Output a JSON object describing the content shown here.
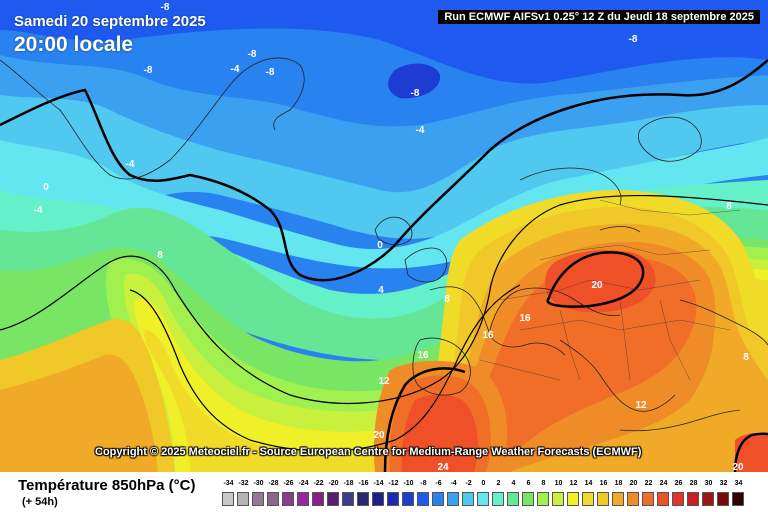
{
  "header": {
    "date_title": "Samedi 20 septembre 2025",
    "time_title": "20:00 locale",
    "run_info": "Run ECMWF AIFSv1 0.25° 12 Z du Jeudi 18 septembre 2025"
  },
  "copyright": "Copyright © 2025 Meteociel.fr - Source European Centre for Medium-Range Weather Forecasts (ECMWF)",
  "footer": {
    "variable_title": "Température 850hPa (°C)",
    "lead_time": "(+ 54h)"
  },
  "legend": {
    "labels": [
      "-34",
      "-32",
      "-30",
      "-28",
      "-26",
      "-24",
      "-22",
      "-20",
      "-18",
      "-16",
      "-14",
      "-12",
      "-10",
      "-8",
      "-6",
      "-4",
      "-2",
      "0",
      "2",
      "4",
      "6",
      "8",
      "10",
      "12",
      "14",
      "16",
      "18",
      "20",
      "22",
      "24",
      "26",
      "28",
      "30",
      "32",
      "34"
    ],
    "colors": [
      "#c8c8c8",
      "#b4b4b4",
      "#967896",
      "#8c648c",
      "#8c3c8c",
      "#9628a0",
      "#8c1e8c",
      "#5a1e6e",
      "#3c3c8c",
      "#28286e",
      "#1e1e8c",
      "#1e28b4",
      "#1e3cd2",
      "#1e5af0",
      "#2882f0",
      "#3ca0f0",
      "#50c8f0",
      "#64e6f0",
      "#64f0c8",
      "#64e696",
      "#78e664",
      "#a0f050",
      "#c8f03c",
      "#f0f028",
      "#f0dc28",
      "#f0c828",
      "#f0aa28",
      "#f08c28",
      "#f06e28",
      "#f05028",
      "#e63228",
      "#c81e1e",
      "#a01414",
      "#780a0a",
      "#320000"
    ]
  },
  "map": {
    "contour_labels": [
      "-8",
      "-8",
      "-8",
      "-4",
      "-8",
      "-8",
      "-4",
      "-4",
      "0",
      "-4",
      "-8",
      "8",
      "0",
      "4",
      "8",
      "20",
      "16",
      "16",
      "16",
      "12",
      "20",
      "12",
      "24",
      "8",
      "8",
      "20"
    ]
  }
}
